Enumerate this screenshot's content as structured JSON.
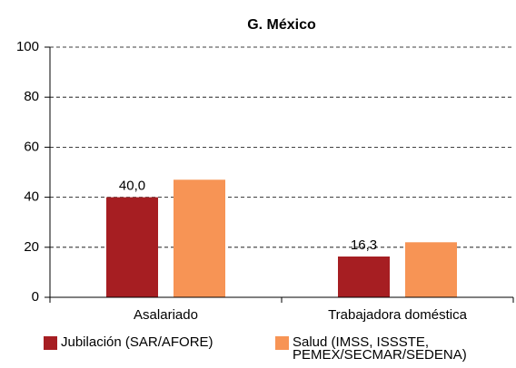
{
  "chart_data": {
    "type": "bar",
    "title": "G. México",
    "categories": [
      "Asalariado",
      "Trabajadora doméstica"
    ],
    "series": [
      {
        "name": "Jubilación (SAR/AFORE)",
        "color": "#a61e22",
        "values": [
          40.0,
          16.3
        ],
        "value_labels": [
          "40,0",
          "16,3"
        ]
      },
      {
        "name": "Salud (IMSS, ISSSTE, PEMEX/SECMAR/SEDENA)",
        "color": "#f79455",
        "values": [
          47,
          22
        ]
      }
    ],
    "ylim": [
      0,
      100
    ],
    "yticks": [
      0,
      20,
      40,
      60,
      80,
      100
    ],
    "grid": true
  }
}
